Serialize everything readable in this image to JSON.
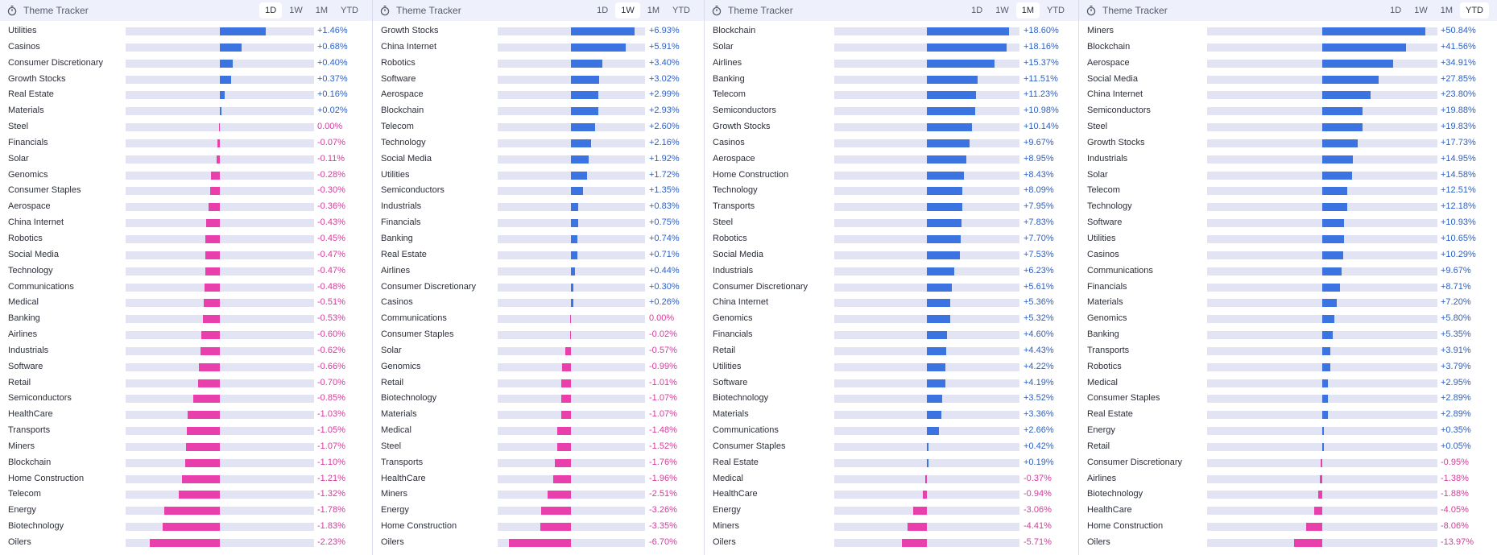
{
  "colors": {
    "positive": "#3b74e0",
    "negative": "#e93fac",
    "track": "#e2e4f3",
    "header_bg": "#eef0fb"
  },
  "panels": [
    {
      "title": "Theme Tracker",
      "icon": "stopwatch-icon",
      "tabs": [
        "1D",
        "1W",
        "1M",
        "YTD"
      ],
      "active_tab": "1D",
      "max_abs": 3.0,
      "rows": [
        {
          "name": "Utilities",
          "value": 1.46,
          "label": "+1.46%"
        },
        {
          "name": "Casinos",
          "value": 0.68,
          "label": "+0.68%"
        },
        {
          "name": "Consumer Discretionary",
          "value": 0.4,
          "label": "+0.40%"
        },
        {
          "name": "Growth Stocks",
          "value": 0.37,
          "label": "+0.37%"
        },
        {
          "name": "Real Estate",
          "value": 0.16,
          "label": "+0.16%"
        },
        {
          "name": "Materials",
          "value": 0.02,
          "label": "+0.02%"
        },
        {
          "name": "Steel",
          "value": 0.0,
          "label": "0.00%"
        },
        {
          "name": "Financials",
          "value": -0.07,
          "label": "-0.07%"
        },
        {
          "name": "Solar",
          "value": -0.11,
          "label": "-0.11%"
        },
        {
          "name": "Genomics",
          "value": -0.28,
          "label": "-0.28%"
        },
        {
          "name": "Consumer Staples",
          "value": -0.3,
          "label": "-0.30%"
        },
        {
          "name": "Aerospace",
          "value": -0.36,
          "label": "-0.36%"
        },
        {
          "name": "China Internet",
          "value": -0.43,
          "label": "-0.43%"
        },
        {
          "name": "Robotics",
          "value": -0.45,
          "label": "-0.45%"
        },
        {
          "name": "Social Media",
          "value": -0.47,
          "label": "-0.47%"
        },
        {
          "name": "Technology",
          "value": -0.47,
          "label": "-0.47%"
        },
        {
          "name": "Communications",
          "value": -0.48,
          "label": "-0.48%"
        },
        {
          "name": "Medical",
          "value": -0.51,
          "label": "-0.51%"
        },
        {
          "name": "Banking",
          "value": -0.53,
          "label": "-0.53%"
        },
        {
          "name": "Airlines",
          "value": -0.6,
          "label": "-0.60%"
        },
        {
          "name": "Industrials",
          "value": -0.62,
          "label": "-0.62%"
        },
        {
          "name": "Software",
          "value": -0.66,
          "label": "-0.66%"
        },
        {
          "name": "Retail",
          "value": -0.7,
          "label": "-0.70%"
        },
        {
          "name": "Semiconductors",
          "value": -0.85,
          "label": "-0.85%"
        },
        {
          "name": "HealthCare",
          "value": -1.03,
          "label": "-1.03%"
        },
        {
          "name": "Transports",
          "value": -1.05,
          "label": "-1.05%"
        },
        {
          "name": "Miners",
          "value": -1.07,
          "label": "-1.07%"
        },
        {
          "name": "Blockchain",
          "value": -1.1,
          "label": "-1.10%"
        },
        {
          "name": "Home Construction",
          "value": -1.21,
          "label": "-1.21%"
        },
        {
          "name": "Telecom",
          "value": -1.32,
          "label": "-1.32%"
        },
        {
          "name": "Energy",
          "value": -1.78,
          "label": "-1.78%"
        },
        {
          "name": "Biotechnology",
          "value": -1.83,
          "label": "-1.83%"
        },
        {
          "name": "Oilers",
          "value": -2.23,
          "label": "-2.23%"
        }
      ]
    },
    {
      "title": "Theme Tracker",
      "icon": "stopwatch-icon",
      "tabs": [
        "1D",
        "1W",
        "1M",
        "YTD"
      ],
      "active_tab": "1W",
      "max_abs": 8.0,
      "rows": [
        {
          "name": "Growth Stocks",
          "value": 6.93,
          "label": "+6.93%"
        },
        {
          "name": "China Internet",
          "value": 5.91,
          "label": "+5.91%"
        },
        {
          "name": "Robotics",
          "value": 3.4,
          "label": "+3.40%"
        },
        {
          "name": "Software",
          "value": 3.02,
          "label": "+3.02%"
        },
        {
          "name": "Aerospace",
          "value": 2.99,
          "label": "+2.99%"
        },
        {
          "name": "Blockchain",
          "value": 2.93,
          "label": "+2.93%"
        },
        {
          "name": "Telecom",
          "value": 2.6,
          "label": "+2.60%"
        },
        {
          "name": "Technology",
          "value": 2.16,
          "label": "+2.16%"
        },
        {
          "name": "Social Media",
          "value": 1.92,
          "label": "+1.92%"
        },
        {
          "name": "Utilities",
          "value": 1.72,
          "label": "+1.72%"
        },
        {
          "name": "Semiconductors",
          "value": 1.35,
          "label": "+1.35%"
        },
        {
          "name": "Industrials",
          "value": 0.83,
          "label": "+0.83%"
        },
        {
          "name": "Financials",
          "value": 0.75,
          "label": "+0.75%"
        },
        {
          "name": "Banking",
          "value": 0.74,
          "label": "+0.74%"
        },
        {
          "name": "Real Estate",
          "value": 0.71,
          "label": "+0.71%"
        },
        {
          "name": "Airlines",
          "value": 0.44,
          "label": "+0.44%"
        },
        {
          "name": "Consumer Discretionary",
          "value": 0.3,
          "label": "+0.30%"
        },
        {
          "name": "Casinos",
          "value": 0.26,
          "label": "+0.26%"
        },
        {
          "name": "Communications",
          "value": 0.0,
          "label": "0.00%"
        },
        {
          "name": "Consumer Staples",
          "value": -0.02,
          "label": "-0.02%"
        },
        {
          "name": "Solar",
          "value": -0.57,
          "label": "-0.57%"
        },
        {
          "name": "Genomics",
          "value": -0.99,
          "label": "-0.99%"
        },
        {
          "name": "Retail",
          "value": -1.01,
          "label": "-1.01%"
        },
        {
          "name": "Biotechnology",
          "value": -1.07,
          "label": "-1.07%"
        },
        {
          "name": "Materials",
          "value": -1.07,
          "label": "-1.07%"
        },
        {
          "name": "Medical",
          "value": -1.48,
          "label": "-1.48%"
        },
        {
          "name": "Steel",
          "value": -1.52,
          "label": "-1.52%"
        },
        {
          "name": "Transports",
          "value": -1.76,
          "label": "-1.76%"
        },
        {
          "name": "HealthCare",
          "value": -1.96,
          "label": "-1.96%"
        },
        {
          "name": "Miners",
          "value": -2.51,
          "label": "-2.51%"
        },
        {
          "name": "Energy",
          "value": -3.26,
          "label": "-3.26%"
        },
        {
          "name": "Home Construction",
          "value": -3.35,
          "label": "-3.35%"
        },
        {
          "name": "Oilers",
          "value": -6.7,
          "label": "-6.70%"
        }
      ]
    },
    {
      "title": "Theme Tracker",
      "icon": "stopwatch-icon",
      "tabs": [
        "1D",
        "1W",
        "1M",
        "YTD"
      ],
      "active_tab": "1M",
      "max_abs": 21.0,
      "rows": [
        {
          "name": "Blockchain",
          "value": 18.6,
          "label": "+18.60%"
        },
        {
          "name": "Solar",
          "value": 18.16,
          "label": "+18.16%"
        },
        {
          "name": "Airlines",
          "value": 15.37,
          "label": "+15.37%"
        },
        {
          "name": "Banking",
          "value": 11.51,
          "label": "+11.51%"
        },
        {
          "name": "Telecom",
          "value": 11.23,
          "label": "+11.23%"
        },
        {
          "name": "Semiconductors",
          "value": 10.98,
          "label": "+10.98%"
        },
        {
          "name": "Growth Stocks",
          "value": 10.14,
          "label": "+10.14%"
        },
        {
          "name": "Casinos",
          "value": 9.67,
          "label": "+9.67%"
        },
        {
          "name": "Aerospace",
          "value": 8.95,
          "label": "+8.95%"
        },
        {
          "name": "Home Construction",
          "value": 8.43,
          "label": "+8.43%"
        },
        {
          "name": "Technology",
          "value": 8.09,
          "label": "+8.09%"
        },
        {
          "name": "Transports",
          "value": 7.95,
          "label": "+7.95%"
        },
        {
          "name": "Steel",
          "value": 7.83,
          "label": "+7.83%"
        },
        {
          "name": "Robotics",
          "value": 7.7,
          "label": "+7.70%"
        },
        {
          "name": "Social Media",
          "value": 7.53,
          "label": "+7.53%"
        },
        {
          "name": "Industrials",
          "value": 6.23,
          "label": "+6.23%"
        },
        {
          "name": "Consumer Discretionary",
          "value": 5.61,
          "label": "+5.61%"
        },
        {
          "name": "China Internet",
          "value": 5.36,
          "label": "+5.36%"
        },
        {
          "name": "Genomics",
          "value": 5.32,
          "label": "+5.32%"
        },
        {
          "name": "Financials",
          "value": 4.6,
          "label": "+4.60%"
        },
        {
          "name": "Retail",
          "value": 4.43,
          "label": "+4.43%"
        },
        {
          "name": "Utilities",
          "value": 4.22,
          "label": "+4.22%"
        },
        {
          "name": "Software",
          "value": 4.19,
          "label": "+4.19%"
        },
        {
          "name": "Biotechnology",
          "value": 3.52,
          "label": "+3.52%"
        },
        {
          "name": "Materials",
          "value": 3.36,
          "label": "+3.36%"
        },
        {
          "name": "Communications",
          "value": 2.66,
          "label": "+2.66%"
        },
        {
          "name": "Consumer Staples",
          "value": 0.42,
          "label": "+0.42%"
        },
        {
          "name": "Real Estate",
          "value": 0.19,
          "label": "+0.19%"
        },
        {
          "name": "Medical",
          "value": -0.37,
          "label": "-0.37%"
        },
        {
          "name": "HealthCare",
          "value": -0.94,
          "label": "-0.94%"
        },
        {
          "name": "Energy",
          "value": -3.06,
          "label": "-3.06%"
        },
        {
          "name": "Miners",
          "value": -4.41,
          "label": "-4.41%"
        },
        {
          "name": "Oilers",
          "value": -5.71,
          "label": "-5.71%"
        }
      ]
    },
    {
      "title": "Theme Tracker",
      "icon": "stopwatch-icon",
      "tabs": [
        "1D",
        "1W",
        "1M",
        "YTD"
      ],
      "active_tab": "YTD",
      "max_abs": 57.0,
      "rows": [
        {
          "name": "Miners",
          "value": 50.84,
          "label": "+50.84%"
        },
        {
          "name": "Blockchain",
          "value": 41.56,
          "label": "+41.56%"
        },
        {
          "name": "Aerospace",
          "value": 34.91,
          "label": "+34.91%"
        },
        {
          "name": "Social Media",
          "value": 27.85,
          "label": "+27.85%"
        },
        {
          "name": "China Internet",
          "value": 23.8,
          "label": "+23.80%"
        },
        {
          "name": "Semiconductors",
          "value": 19.88,
          "label": "+19.88%"
        },
        {
          "name": "Steel",
          "value": 19.83,
          "label": "+19.83%"
        },
        {
          "name": "Growth Stocks",
          "value": 17.73,
          "label": "+17.73%"
        },
        {
          "name": "Industrials",
          "value": 14.95,
          "label": "+14.95%"
        },
        {
          "name": "Solar",
          "value": 14.58,
          "label": "+14.58%"
        },
        {
          "name": "Telecom",
          "value": 12.51,
          "label": "+12.51%"
        },
        {
          "name": "Technology",
          "value": 12.18,
          "label": "+12.18%"
        },
        {
          "name": "Software",
          "value": 10.93,
          "label": "+10.93%"
        },
        {
          "name": "Utilities",
          "value": 10.65,
          "label": "+10.65%"
        },
        {
          "name": "Casinos",
          "value": 10.29,
          "label": "+10.29%"
        },
        {
          "name": "Communications",
          "value": 9.67,
          "label": "+9.67%"
        },
        {
          "name": "Financials",
          "value": 8.71,
          "label": "+8.71%"
        },
        {
          "name": "Materials",
          "value": 7.2,
          "label": "+7.20%"
        },
        {
          "name": "Genomics",
          "value": 5.8,
          "label": "+5.80%"
        },
        {
          "name": "Banking",
          "value": 5.35,
          "label": "+5.35%"
        },
        {
          "name": "Transports",
          "value": 3.91,
          "label": "+3.91%"
        },
        {
          "name": "Robotics",
          "value": 3.79,
          "label": "+3.79%"
        },
        {
          "name": "Medical",
          "value": 2.95,
          "label": "+2.95%"
        },
        {
          "name": "Consumer Staples",
          "value": 2.89,
          "label": "+2.89%"
        },
        {
          "name": "Real Estate",
          "value": 2.89,
          "label": "+2.89%"
        },
        {
          "name": "Energy",
          "value": 0.35,
          "label": "+0.35%"
        },
        {
          "name": "Retail",
          "value": 0.05,
          "label": "+0.05%"
        },
        {
          "name": "Consumer Discretionary",
          "value": -0.95,
          "label": "-0.95%"
        },
        {
          "name": "Airlines",
          "value": -1.38,
          "label": "-1.38%"
        },
        {
          "name": "Biotechnology",
          "value": -1.88,
          "label": "-1.88%"
        },
        {
          "name": "HealthCare",
          "value": -4.05,
          "label": "-4.05%"
        },
        {
          "name": "Home Construction",
          "value": -8.06,
          "label": "-8.06%"
        },
        {
          "name": "Oilers",
          "value": -13.97,
          "label": "-13.97%"
        }
      ]
    }
  ]
}
